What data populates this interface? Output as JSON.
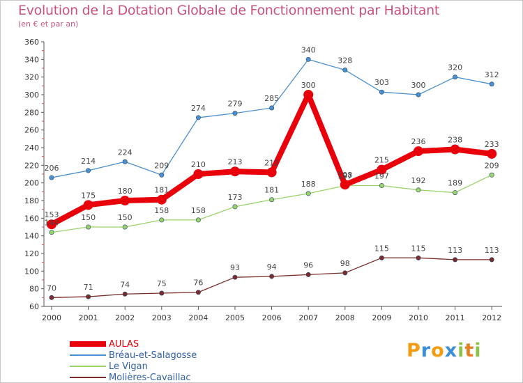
{
  "title": "Evolution de la Dotation Globale de Fonctionnement par Habitant",
  "subtitle": "(en € et par an)",
  "brand": {
    "letters": [
      "P",
      "r",
      "o",
      "x",
      "i",
      "t",
      "i"
    ],
    "colors": [
      "#f39c12",
      "#3a8fd6",
      "#f39c12",
      "#3a8fd6",
      "#8bc34a",
      "#e67e22",
      "#8bc34a"
    ]
  },
  "chart_data": {
    "type": "line",
    "x": [
      2000,
      2001,
      2002,
      2003,
      2004,
      2005,
      2006,
      2007,
      2008,
      2009,
      2010,
      2011,
      2012
    ],
    "ylim": [
      60,
      360
    ],
    "yticks": [
      60,
      80,
      100,
      120,
      140,
      160,
      180,
      200,
      220,
      240,
      260,
      280,
      300,
      320,
      340,
      360
    ],
    "grid": false,
    "legend_position": "bottom-left",
    "series": [
      {
        "name": "Bréau-et-Salagosse",
        "color": "#4a8fcf",
        "values": [
          206,
          214,
          224,
          209,
          274,
          279,
          285,
          340,
          328,
          303,
          300,
          320,
          312
        ],
        "bold": false
      },
      {
        "name": "Le Vigan",
        "color": "#99d36a",
        "values": [
          144,
          150,
          150,
          158,
          158,
          173,
          181,
          188,
          197,
          197,
          192,
          189,
          209
        ],
        "bold": false
      },
      {
        "name": "Molières-Cavaillac",
        "color": "#7a2b2b",
        "values": [
          70,
          71,
          74,
          75,
          76,
          93,
          94,
          96,
          98,
          115,
          115,
          113,
          113
        ],
        "bold": false
      },
      {
        "name": "AULAS",
        "color": "#e8000b",
        "values": [
          153,
          175,
          180,
          181,
          210,
          213,
          212,
          300,
          198,
          215,
          236,
          238,
          233
        ],
        "bold": true
      }
    ],
    "legend_order": [
      "AULAS",
      "Bréau-et-Salagosse",
      "Le Vigan",
      "Molières-Cavaillac"
    ]
  }
}
